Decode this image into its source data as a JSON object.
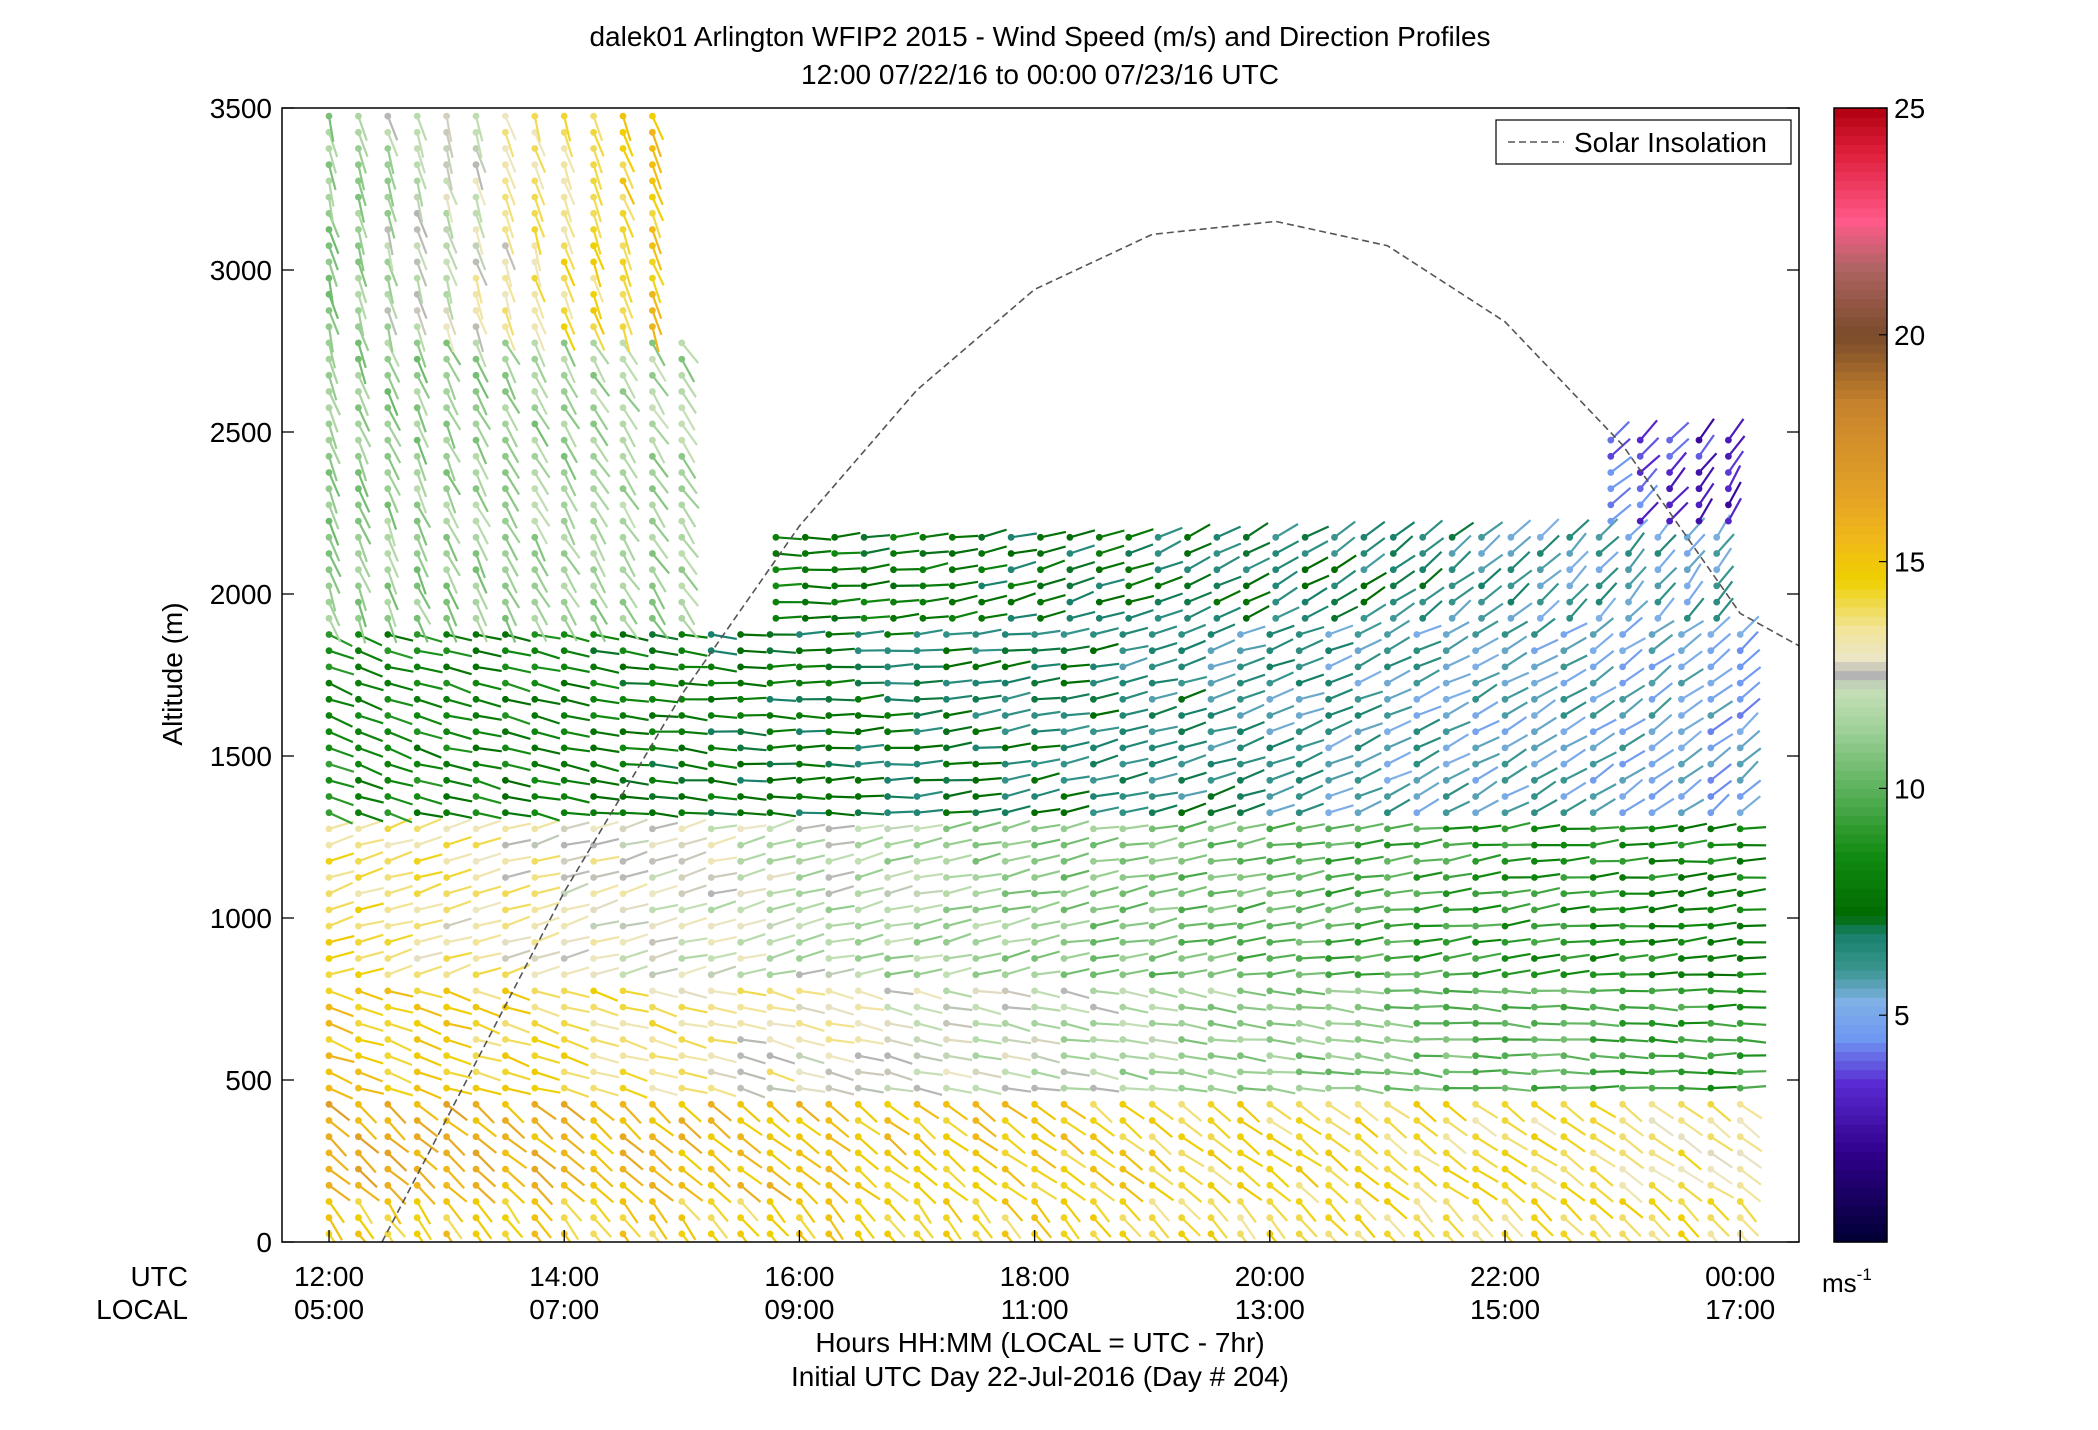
{
  "chart_data": {
    "type": "wind-barb-profile",
    "title": "dalek01 Arlington WFIP2 2015 - Wind Speed (m/s) and Direction Profiles",
    "subtitle": "12:00 07/22/16 to 00:00 07/23/16  UTC",
    "ylabel": "Altitude (m)",
    "xlabel": "Hours HH:MM  (LOCAL = UTC - 7hr)",
    "xlabel2": "Initial UTC Day 22-Jul-2016 (Day # 204)",
    "row_label_utc": "UTC",
    "row_label_local": "LOCAL",
    "xlim_hours_utc": [
      11.6,
      24.5
    ],
    "ylim": [
      0,
      3500
    ],
    "yticks": [
      0,
      500,
      1000,
      1500,
      2000,
      2500,
      3000,
      3500
    ],
    "xticks_hours_utc": [
      12,
      14,
      16,
      18,
      20,
      22,
      24
    ],
    "xtick_labels_utc": [
      "12:00",
      "14:00",
      "16:00",
      "18:00",
      "20:00",
      "22:00",
      "00:00"
    ],
    "xtick_labels_local": [
      "05:00",
      "07:00",
      "09:00",
      "11:00",
      "13:00",
      "15:00",
      "17:00"
    ],
    "legend": {
      "entry": "Solar Insolation",
      "style": "dashed",
      "placement": "top-right"
    },
    "colorbar": {
      "unit_label": "ms",
      "unit_exponent": "-1",
      "range": [
        0,
        25
      ],
      "ticks": [
        5,
        10,
        15,
        20,
        25
      ],
      "stops": [
        {
          "v": 0,
          "c": "#000033"
        },
        {
          "v": 2,
          "c": "#30008c"
        },
        {
          "v": 3.5,
          "c": "#5a2bd2"
        },
        {
          "v": 4.5,
          "c": "#6f98f3"
        },
        {
          "v": 5.3,
          "c": "#7fb0e6"
        },
        {
          "v": 6,
          "c": "#3a9690"
        },
        {
          "v": 6.8,
          "c": "#17806a"
        },
        {
          "v": 7.2,
          "c": "#006b00"
        },
        {
          "v": 8.5,
          "c": "#108a10"
        },
        {
          "v": 10,
          "c": "#5cb35c"
        },
        {
          "v": 11.5,
          "c": "#a8d4a0"
        },
        {
          "v": 12.2,
          "c": "#c8e0b8"
        },
        {
          "v": 12.5,
          "c": "#b4b4b4"
        },
        {
          "v": 12.9,
          "c": "#ece6c4"
        },
        {
          "v": 13.5,
          "c": "#f2e49a"
        },
        {
          "v": 14.6,
          "c": "#efd000"
        },
        {
          "v": 15.5,
          "c": "#f0b81a"
        },
        {
          "v": 16.5,
          "c": "#e3a226"
        },
        {
          "v": 18.5,
          "c": "#c6822c"
        },
        {
          "v": 20,
          "c": "#7a4a2a"
        },
        {
          "v": 21.5,
          "c": "#b06464"
        },
        {
          "v": 22.5,
          "c": "#ff5a8a"
        },
        {
          "v": 24,
          "c": "#e0203c"
        },
        {
          "v": 25,
          "c": "#b00010"
        }
      ]
    },
    "solar_insolation": {
      "rise_hour_utc": 12.45,
      "peak_hour_utc": 20.05,
      "peak_altitude_equivalent": 3150,
      "points_hours_utc": [
        12.45,
        13.0,
        14.0,
        15.0,
        16.0,
        17.0,
        18.0,
        19.0,
        20.05,
        21.0,
        22.0,
        23.0,
        24.0,
        24.5
      ],
      "points_altitude_equivalent": [
        0,
        380,
        1080,
        1690,
        2210,
        2630,
        2940,
        3110,
        3150,
        3075,
        2840,
        2460,
        1940,
        1840
      ]
    },
    "wind_layers": [
      {
        "from": 0,
        "to": 150,
        "h_start": 12.0,
        "h_end": 24.0,
        "speed_start": 14.8,
        "speed_end": 14.0,
        "dir_start": 215,
        "dir_end": 225
      },
      {
        "from": 150,
        "to": 450,
        "h_start": 12.0,
        "h_end": 24.0,
        "speed_start": 16.0,
        "speed_end": 13.5,
        "dir_start": 228,
        "dir_end": 235
      },
      {
        "from": 450,
        "to": 800,
        "h_start": 12.0,
        "h_end": 24.0,
        "speed_start": 15.0,
        "speed_end": 9.0,
        "dir_start": 250,
        "dir_end": 270
      },
      {
        "from": 800,
        "to": 1300,
        "h_start": 12.0,
        "h_end": 24.0,
        "speed_start": 14.0,
        "speed_end": 8.0,
        "dir_start": 288,
        "dir_end": 275
      },
      {
        "from": 1300,
        "to": 1900,
        "h_start": 12.0,
        "h_end": 24.0,
        "speed_start": 8.5,
        "speed_end": 5.0,
        "dir_start": 250,
        "dir_end": 310
      },
      {
        "from": 1900,
        "to": 2200,
        "h_start": 15.8,
        "h_end": 24.0,
        "speed_start": 8.0,
        "speed_end": 5.5,
        "dir_start": 270,
        "dir_end": 325
      },
      {
        "from": 1900,
        "to": 2800,
        "h_start": 12.0,
        "h_end": 15.0,
        "speed_start": 11.0,
        "speed_end": 11.5,
        "dir_start": 200,
        "dir_end": 215
      },
      {
        "from": 2800,
        "to": 3500,
        "h_start": 12.0,
        "h_end": 14.8,
        "speed_start": 11.0,
        "speed_end": 15.0,
        "dir_start": 195,
        "dir_end": 200
      },
      {
        "from": 2200,
        "to": 2500,
        "h_start": 22.9,
        "h_end": 24.0,
        "speed_start": 4.0,
        "speed_end": 2.8,
        "dir_start": 310,
        "dir_end": 330
      }
    ]
  }
}
